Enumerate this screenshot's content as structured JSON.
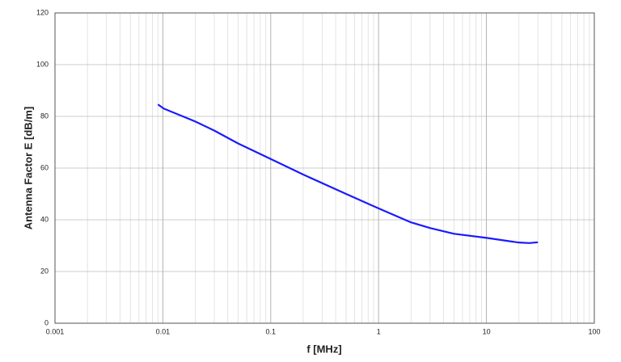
{
  "chart_data": {
    "type": "line",
    "x_label": "f [MHz]",
    "y_label": "Antenna Factor E [dB/m]",
    "x_log": true,
    "grid": true,
    "xlim": [
      0.001,
      100
    ],
    "xticks": [
      0.001,
      0.01,
      0.1,
      1,
      10,
      100
    ],
    "ylim": [
      0,
      120
    ],
    "yticks": [
      0,
      20,
      40,
      60,
      80,
      100,
      120
    ],
    "series": [
      {
        "color": "#1a1aff",
        "x": [
          0.009,
          0.0102,
          0.02,
          0.03,
          0.05,
          0.1,
          0.2,
          0.5,
          1,
          2,
          3,
          5,
          10,
          20,
          25,
          30
        ],
        "values": [
          84.6,
          83,
          78,
          74.5,
          69.5,
          63.5,
          57.5,
          50,
          44.4,
          39,
          36.8,
          34.6,
          33,
          31.2,
          31,
          31.3
        ]
      }
    ]
  }
}
